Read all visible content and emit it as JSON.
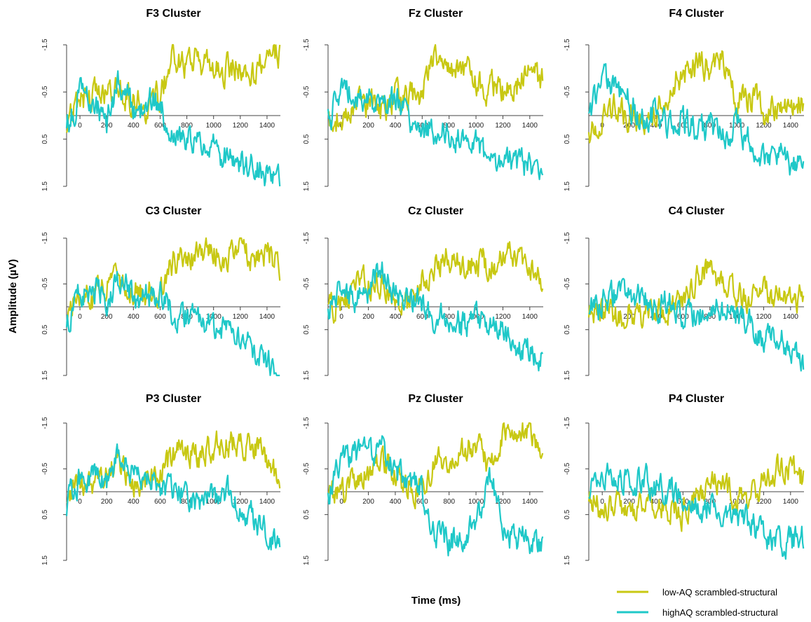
{
  "figure": {
    "ylabel": "Amplitude (µV)",
    "xlabel": "Time (ms)"
  },
  "colors": {
    "low": "#c8c813",
    "high": "#1fc8c8"
  },
  "legend": {
    "placement": "bottom-right",
    "items": [
      {
        "key": "low",
        "label": "low-AQ scrambled-structural"
      },
      {
        "key": "high",
        "label": "highAQ scrambled-structural"
      }
    ]
  },
  "chart_data": [
    {
      "type": "line",
      "title": "F3 Cluster",
      "x_ticks": [
        0,
        200,
        400,
        600,
        800,
        1000,
        1200,
        1400
      ],
      "y_ticks": [
        -1.5,
        -0.5,
        0.5,
        1.5
      ],
      "xlim": [
        -100,
        1500
      ],
      "ylim": [
        1.5,
        -1.5
      ],
      "y_inverted": true,
      "series": [
        {
          "key": "low",
          "x": [
            -100,
            0,
            100,
            200,
            300,
            400,
            500,
            600,
            700,
            800,
            900,
            1000,
            1100,
            1200,
            1300,
            1400,
            1500
          ],
          "y": [
            0.3,
            -0.3,
            -0.4,
            -0.6,
            -0.5,
            -0.3,
            -0.2,
            -0.4,
            -1.3,
            -1.0,
            -1.2,
            -0.9,
            -1.0,
            -1.1,
            -0.8,
            -1.4,
            -1.3
          ]
        },
        {
          "key": "high",
          "x": [
            -100,
            0,
            100,
            200,
            300,
            400,
            500,
            600,
            700,
            800,
            900,
            1000,
            1100,
            1200,
            1300,
            1400,
            1500
          ],
          "y": [
            0.2,
            -0.4,
            -0.3,
            0.1,
            -0.8,
            0.0,
            -0.3,
            -0.2,
            0.6,
            0.5,
            0.6,
            0.7,
            0.9,
            1.0,
            1.1,
            1.2,
            1.5
          ]
        }
      ]
    },
    {
      "type": "line",
      "title": "Fz Cluster",
      "x_ticks": [
        0,
        200,
        400,
        600,
        800,
        1000,
        1200,
        1400
      ],
      "y_ticks": [
        -1.5,
        -0.5,
        0.5,
        1.5
      ],
      "xlim": [
        -100,
        1500
      ],
      "ylim": [
        1.5,
        -1.5
      ],
      "y_inverted": true,
      "series": [
        {
          "key": "low",
          "x": [
            -100,
            0,
            100,
            200,
            300,
            400,
            500,
            600,
            700,
            800,
            900,
            1000,
            1100,
            1200,
            1300,
            1400,
            1500
          ],
          "y": [
            0.2,
            0.0,
            -0.3,
            -0.2,
            -0.1,
            -0.4,
            -0.3,
            -0.5,
            -1.2,
            -1.0,
            -1.1,
            -0.6,
            -0.6,
            -0.5,
            -0.6,
            -0.9,
            -0.7
          ]
        },
        {
          "key": "high",
          "x": [
            -100,
            0,
            100,
            200,
            300,
            400,
            500,
            600,
            700,
            800,
            900,
            1000,
            1100,
            1200,
            1300,
            1400,
            1500
          ],
          "y": [
            0.1,
            -0.6,
            -0.4,
            -0.3,
            -0.2,
            -0.3,
            0.0,
            0.3,
            0.3,
            0.4,
            0.5,
            0.6,
            1.0,
            0.9,
            1.0,
            1.1,
            1.3
          ]
        }
      ]
    },
    {
      "type": "line",
      "title": "F4 Cluster",
      "x_ticks": [
        0,
        200,
        400,
        600,
        800,
        1000,
        1200,
        1400
      ],
      "y_ticks": [
        -1.5,
        -0.5,
        0.5,
        1.5
      ],
      "xlim": [
        -100,
        1500
      ],
      "ylim": [
        1.5,
        -1.5
      ],
      "y_inverted": true,
      "series": [
        {
          "key": "low",
          "x": [
            -100,
            0,
            100,
            200,
            300,
            400,
            500,
            600,
            700,
            800,
            900,
            1000,
            1100,
            1200,
            1300,
            1400,
            1500
          ],
          "y": [
            0.4,
            0.1,
            -0.2,
            0.0,
            0.1,
            -0.2,
            -0.6,
            -0.9,
            -1.1,
            -1.0,
            -1.2,
            -0.3,
            -0.4,
            -0.1,
            -0.2,
            -0.2,
            -0.3
          ]
        },
        {
          "key": "high",
          "x": [
            -100,
            0,
            100,
            200,
            300,
            400,
            500,
            600,
            700,
            800,
            900,
            1000,
            1100,
            1200,
            1300,
            1400,
            1500
          ],
          "y": [
            0.0,
            -0.9,
            -0.5,
            -0.3,
            0.1,
            0.0,
            0.2,
            0.1,
            0.3,
            0.2,
            0.4,
            0.2,
            0.6,
            0.8,
            0.9,
            1.0,
            1.2
          ]
        }
      ]
    },
    {
      "type": "line",
      "title": "C3 Cluster",
      "x_ticks": [
        0,
        200,
        400,
        600,
        800,
        1000,
        1200,
        1400
      ],
      "y_ticks": [
        -1.5,
        -0.5,
        0.5,
        1.5
      ],
      "xlim": [
        -100,
        1500
      ],
      "ylim": [
        1.5,
        -1.5
      ],
      "y_inverted": true,
      "series": [
        {
          "key": "low",
          "x": [
            -100,
            0,
            100,
            200,
            300,
            400,
            500,
            600,
            700,
            800,
            900,
            1000,
            1100,
            1200,
            1300,
            1400,
            1500
          ],
          "y": [
            0.2,
            -0.3,
            -0.2,
            -0.5,
            -0.6,
            -0.4,
            -0.3,
            -0.3,
            -1.0,
            -0.9,
            -1.3,
            -1.2,
            -1.1,
            -1.3,
            -0.9,
            -1.2,
            -0.9
          ]
        },
        {
          "key": "high",
          "x": [
            -100,
            0,
            100,
            200,
            300,
            400,
            500,
            600,
            700,
            800,
            900,
            1000,
            1100,
            1200,
            1300,
            1400,
            1500
          ],
          "y": [
            0.3,
            -0.3,
            -0.5,
            -0.2,
            -0.6,
            -0.2,
            -0.2,
            -0.3,
            0.2,
            0.2,
            0.4,
            0.5,
            0.5,
            0.7,
            0.9,
            1.2,
            1.5
          ]
        }
      ]
    },
    {
      "type": "line",
      "title": "Cz Cluster",
      "x_ticks": [
        0,
        200,
        400,
        600,
        800,
        1000,
        1200,
        1400
      ],
      "y_ticks": [
        -1.5,
        -0.5,
        0.5,
        1.5
      ],
      "xlim": [
        -100,
        1500
      ],
      "ylim": [
        1.5,
        -1.5
      ],
      "y_inverted": true,
      "series": [
        {
          "key": "low",
          "x": [
            -100,
            0,
            100,
            200,
            300,
            400,
            500,
            600,
            700,
            800,
            900,
            1000,
            1100,
            1200,
            1300,
            1400,
            1500
          ],
          "y": [
            0.1,
            -0.1,
            -0.4,
            -0.5,
            -0.6,
            -0.3,
            0.0,
            -0.6,
            -0.9,
            -1.1,
            -0.9,
            -1.0,
            -0.9,
            -1.0,
            -1.1,
            -0.9,
            -0.6
          ]
        },
        {
          "key": "high",
          "x": [
            -100,
            0,
            100,
            200,
            300,
            400,
            500,
            600,
            700,
            800,
            900,
            1000,
            1100,
            1200,
            1300,
            1400,
            1500
          ],
          "y": [
            0.2,
            -0.5,
            -0.2,
            -0.4,
            -0.9,
            -0.3,
            -0.2,
            0.0,
            0.3,
            0.2,
            0.4,
            0.3,
            0.3,
            0.5,
            0.9,
            1.0,
            1.2
          ]
        }
      ]
    },
    {
      "type": "line",
      "title": "C4 Cluster",
      "x_ticks": [
        0,
        200,
        400,
        600,
        800,
        1000,
        1200,
        1400
      ],
      "y_ticks": [
        -1.5,
        -0.5,
        0.5,
        1.5
      ],
      "xlim": [
        -100,
        1500
      ],
      "ylim": [
        1.5,
        -1.5
      ],
      "y_inverted": true,
      "series": [
        {
          "key": "low",
          "x": [
            -100,
            0,
            100,
            200,
            300,
            400,
            500,
            600,
            700,
            800,
            900,
            1000,
            1100,
            1200,
            1300,
            1400,
            1500
          ],
          "y": [
            0.2,
            0.0,
            0.2,
            0.1,
            0.2,
            0.1,
            0.0,
            -0.1,
            -0.6,
            -0.8,
            -0.5,
            -0.2,
            -0.2,
            -0.3,
            -0.2,
            -0.3,
            -0.1
          ]
        },
        {
          "key": "high",
          "x": [
            -100,
            0,
            100,
            200,
            300,
            400,
            500,
            600,
            700,
            800,
            900,
            1000,
            1100,
            1200,
            1300,
            1400,
            1500
          ],
          "y": [
            0.1,
            -0.1,
            -0.3,
            -0.2,
            -0.1,
            0.0,
            -0.2,
            0.1,
            0.2,
            0.1,
            0.0,
            0.2,
            0.4,
            0.8,
            0.7,
            0.9,
            1.2
          ]
        }
      ]
    },
    {
      "type": "line",
      "title": "P3 Cluster",
      "x_ticks": [
        0,
        200,
        400,
        600,
        800,
        1000,
        1200,
        1400
      ],
      "y_ticks": [
        -1.5,
        -0.5,
        0.5,
        1.5
      ],
      "xlim": [
        -100,
        1500
      ],
      "ylim": [
        1.5,
        -1.5
      ],
      "y_inverted": true,
      "series": [
        {
          "key": "low",
          "x": [
            -100,
            0,
            100,
            200,
            300,
            400,
            500,
            600,
            700,
            800,
            900,
            1000,
            1100,
            1200,
            1300,
            1400,
            1500
          ],
          "y": [
            0.0,
            -0.2,
            -0.2,
            -0.4,
            -0.6,
            -0.2,
            -0.3,
            -0.4,
            -0.8,
            -0.9,
            -0.8,
            -1.0,
            -1.1,
            -1.0,
            -1.0,
            -0.7,
            -0.3
          ]
        },
        {
          "key": "high",
          "x": [
            -100,
            0,
            100,
            200,
            300,
            400,
            500,
            600,
            700,
            800,
            900,
            1000,
            1100,
            1200,
            1300,
            1400,
            1500
          ],
          "y": [
            0.3,
            -0.3,
            -0.4,
            -0.2,
            -0.9,
            -0.4,
            -0.3,
            -0.1,
            0.0,
            0.1,
            0.2,
            0.1,
            0.0,
            0.3,
            0.6,
            0.9,
            1.3
          ]
        }
      ]
    },
    {
      "type": "line",
      "title": "Pz Cluster",
      "x_ticks": [
        0,
        200,
        400,
        600,
        800,
        1000,
        1200,
        1400
      ],
      "y_ticks": [
        -1.5,
        -0.5,
        0.5,
        1.5
      ],
      "xlim": [
        -100,
        1500
      ],
      "ylim": [
        1.5,
        -1.5
      ],
      "y_inverted": true,
      "series": [
        {
          "key": "low",
          "x": [
            -100,
            0,
            100,
            200,
            300,
            400,
            500,
            600,
            700,
            800,
            900,
            1000,
            1100,
            1200,
            1300,
            1400,
            1500
          ],
          "y": [
            0.1,
            0.0,
            -0.2,
            -0.4,
            -0.8,
            -0.3,
            -0.2,
            0.0,
            -0.6,
            -0.8,
            -0.9,
            -1.1,
            -0.5,
            -1.2,
            -1.4,
            -1.3,
            -0.9
          ]
        },
        {
          "key": "high",
          "x": [
            -100,
            0,
            100,
            200,
            300,
            400,
            500,
            600,
            700,
            800,
            900,
            1000,
            1100,
            1200,
            1300,
            1400,
            1500
          ],
          "y": [
            0.1,
            -0.6,
            -0.9,
            -0.7,
            -1.1,
            -0.4,
            -0.3,
            0.0,
            0.9,
            1.1,
            1.0,
            0.8,
            -0.5,
            0.8,
            1.0,
            1.1,
            1.2
          ]
        }
      ]
    },
    {
      "type": "line",
      "title": "P4 Cluster",
      "x_ticks": [
        0,
        200,
        400,
        600,
        800,
        1000,
        1200,
        1400
      ],
      "y_ticks": [
        -1.5,
        -0.5,
        0.5,
        1.5
      ],
      "xlim": [
        -100,
        1500
      ],
      "ylim": [
        1.5,
        -1.5
      ],
      "y_inverted": true,
      "series": [
        {
          "key": "low",
          "x": [
            -100,
            0,
            100,
            200,
            300,
            400,
            500,
            600,
            700,
            800,
            900,
            1000,
            1100,
            1200,
            1300,
            1400,
            1500
          ],
          "y": [
            0.1,
            0.4,
            0.3,
            0.5,
            0.2,
            0.3,
            0.4,
            0.5,
            0.1,
            -0.2,
            -0.1,
            0.2,
            0.1,
            -0.2,
            -0.5,
            -0.4,
            -0.3
          ]
        },
        {
          "key": "high",
          "x": [
            -100,
            0,
            100,
            200,
            300,
            400,
            500,
            600,
            700,
            800,
            900,
            1000,
            1100,
            1200,
            1300,
            1400,
            1500
          ],
          "y": [
            0.0,
            -0.3,
            -0.4,
            -0.2,
            -0.3,
            -0.1,
            0.0,
            0.1,
            0.4,
            0.3,
            0.4,
            0.5,
            0.7,
            0.9,
            1.2,
            1.1,
            1.0
          ]
        }
      ]
    }
  ]
}
